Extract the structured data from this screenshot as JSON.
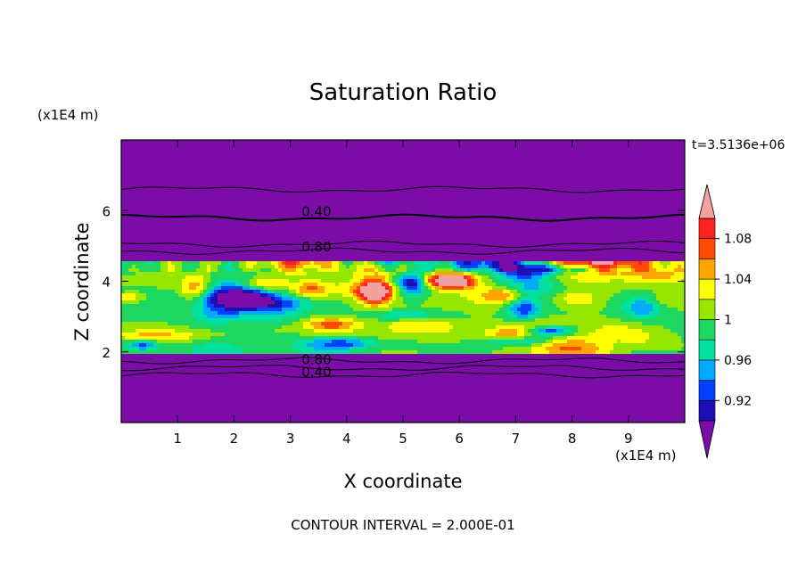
{
  "chart_data": {
    "type": "heatmap",
    "title": "Saturation Ratio",
    "xlabel": "X coordinate",
    "ylabel": "Z coordinate",
    "x_unit": "(x1E4 m)",
    "y_unit": "(x1E4 m)",
    "xlim": [
      0,
      10
    ],
    "ylim": [
      0,
      8
    ],
    "x_ticks": [
      "1",
      "2",
      "3",
      "4",
      "5",
      "6",
      "7",
      "8",
      "9"
    ],
    "y_ticks": [
      "2",
      "4",
      "6"
    ],
    "time_label": "t=3.5136e+06",
    "footer": "CONTOUR INTERVAL = 2.000E-01",
    "colorbar": {
      "levels": [
        0.9,
        0.92,
        0.94,
        0.96,
        0.98,
        1.0,
        1.02,
        1.04,
        1.06,
        1.08,
        1.1
      ],
      "tick_labels": [
        "0.92",
        "0.96",
        "1",
        "1.04",
        "1.08"
      ],
      "colors": [
        "#4a0ca3",
        "#1c0fb4",
        "#0041ff",
        "#00aaff",
        "#00e0a0",
        "#1ed760",
        "#96e600",
        "#ffff00",
        "#ffa500",
        "#ff4b00",
        "#ff2020",
        "#f5a0a0"
      ],
      "below_color": "#7b0ca8",
      "above_color": "#f5a0a0"
    },
    "background_color": "#7b0ca8",
    "contour_labels": [
      {
        "text": "0.40",
        "x": 3.2,
        "z": 6.0
      },
      {
        "text": "0.80",
        "x": 3.2,
        "z": 5.0
      },
      {
        "text": "0.80",
        "x": 3.2,
        "z": 1.8
      },
      {
        "text": "0.40",
        "x": 3.2,
        "z": 1.45
      }
    ],
    "bands": {
      "turbulent_layer": [
        1.8,
        4.7
      ],
      "upper_contours": [
        6.6,
        5.8,
        5.05,
        4.85
      ],
      "lower_contours": [
        1.75,
        1.55,
        1.35
      ]
    }
  }
}
